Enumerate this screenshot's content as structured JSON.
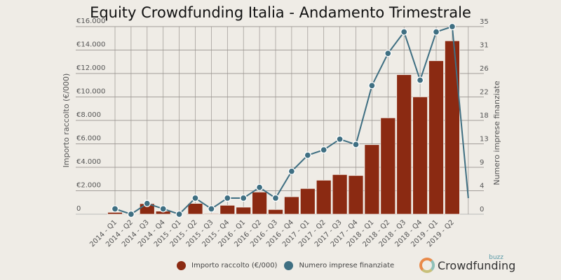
{
  "chart_data": {
    "type": "bar",
    "title": "Equity Crowdfunding Italia - Andamento Trimestrale",
    "categories": [
      "2014 - Q1",
      "2014 - Q2",
      "2014 - Q3",
      "2014 - Q4",
      "2015 - Q1",
      "2015 - Q2",
      "2015 - Q3",
      "2015 - Q4",
      "2016 - Q1",
      "2016 - Q2",
      "2016 - Q3",
      "2016 - Q4",
      "2017 - Q1",
      "2017 - Q2",
      "2017 - Q3",
      "2017 - Q4",
      "2018 - Q1",
      "2018 - Q2",
      "2018 - Q3",
      "2018 - Q4",
      "2019 - Q1",
      "2019 - Q2",
      ""
    ],
    "series": [
      {
        "name": "Importo raccolto (€/000)",
        "type": "bar",
        "axis": "left",
        "color": "#8b2a12",
        "values": [
          160,
          50,
          900,
          260,
          0,
          920,
          60,
          760,
          600,
          1890,
          400,
          1490,
          2190,
          2900,
          3380,
          3300,
          5930,
          8220,
          11900,
          10010,
          13090,
          14790,
          null
        ]
      },
      {
        "name": "Numero imprese finanziate",
        "type": "line",
        "axis": "right",
        "color": "#3f6f82",
        "values": [
          1,
          0,
          2,
          1,
          0,
          3,
          1,
          3,
          3,
          5,
          3,
          8,
          11,
          12,
          14,
          13,
          24,
          30,
          34,
          25,
          34,
          35,
          3
        ]
      }
    ],
    "ylabel": "Importo raccolto (€/000)",
    "y2label": "Numero imprese finanziate",
    "ylim": [
      0,
      16000
    ],
    "y2lim": [
      0,
      35
    ],
    "yticks": [
      "0",
      "€2.000",
      "€4.000",
      "€6.000",
      "€8.000",
      "€10.000",
      "€12.000",
      "€14.000",
      "€16.000"
    ],
    "y2ticks": [
      "0",
      "4",
      "9",
      "13",
      "18",
      "22",
      "26",
      "31",
      "35"
    ],
    "grid": true,
    "legend": "bottom-center"
  },
  "logo": {
    "buzz": "buzz",
    "name": "Crowdfunding"
  }
}
